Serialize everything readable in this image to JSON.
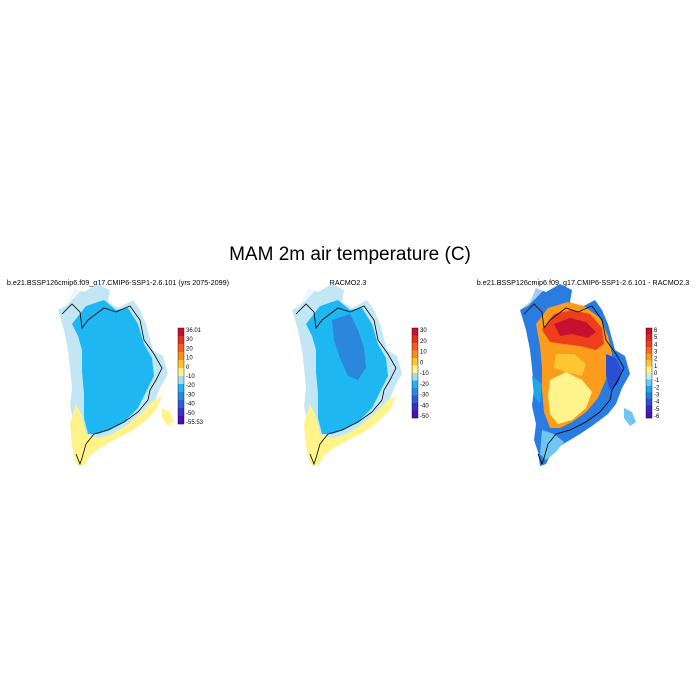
{
  "title": "MAM 2m air temperature (C)",
  "panels": [
    {
      "title": "b.e21.BSSP126cmip6.f09_g17.CMIP6-SSP1-2.6.101 (yrs 2075-2099)",
      "colorbar": {
        "labels": [
          "36.01",
          "30",
          "20",
          "10",
          "0",
          "-10",
          "-20",
          "-30",
          "-40",
          "-50",
          "-55.53"
        ],
        "colors": [
          "#c8102e",
          "#e4321f",
          "#f45d1c",
          "#fa8e1a",
          "#fdc526",
          "#fff38a",
          "#a6dcf0",
          "#1fb4f2",
          "#258cdf",
          "#2c5fd5",
          "#3b2fc6",
          "#4b10b8"
        ]
      }
    },
    {
      "title": "RACMO2.3",
      "colorbar": {
        "labels": [
          "30",
          "20",
          "10",
          "0",
          "-10",
          "-20",
          "-30",
          "-40",
          "-50"
        ],
        "colors": [
          "#c8102e",
          "#e4321f",
          "#f45d1c",
          "#fa8e1a",
          "#fdc526",
          "#fff38a",
          "#a6dcf0",
          "#1fb4f2",
          "#258cdf",
          "#2c5fd5",
          "#3b2fc6",
          "#4b10b8"
        ]
      }
    },
    {
      "title": "b.e21.BSSP126cmip6.f09_g17.CMIP6-SSP1-2.6.101 - RACMO2.3",
      "colorbar": {
        "labels": [
          "6",
          "5",
          "4",
          "3",
          "2",
          "1",
          "0",
          "-1",
          "-2",
          "-3",
          "-4",
          "-5",
          "-6"
        ],
        "colors": [
          "#c8102e",
          "#dc2525",
          "#ee3f1d",
          "#f76a1b",
          "#fb9c1c",
          "#fdc731",
          "#fff48c",
          "#c6e9f7",
          "#6fc6f1",
          "#1fa7ee",
          "#2379df",
          "#2c4ed4",
          "#3b26c4",
          "#4b10b8"
        ]
      }
    }
  ]
}
